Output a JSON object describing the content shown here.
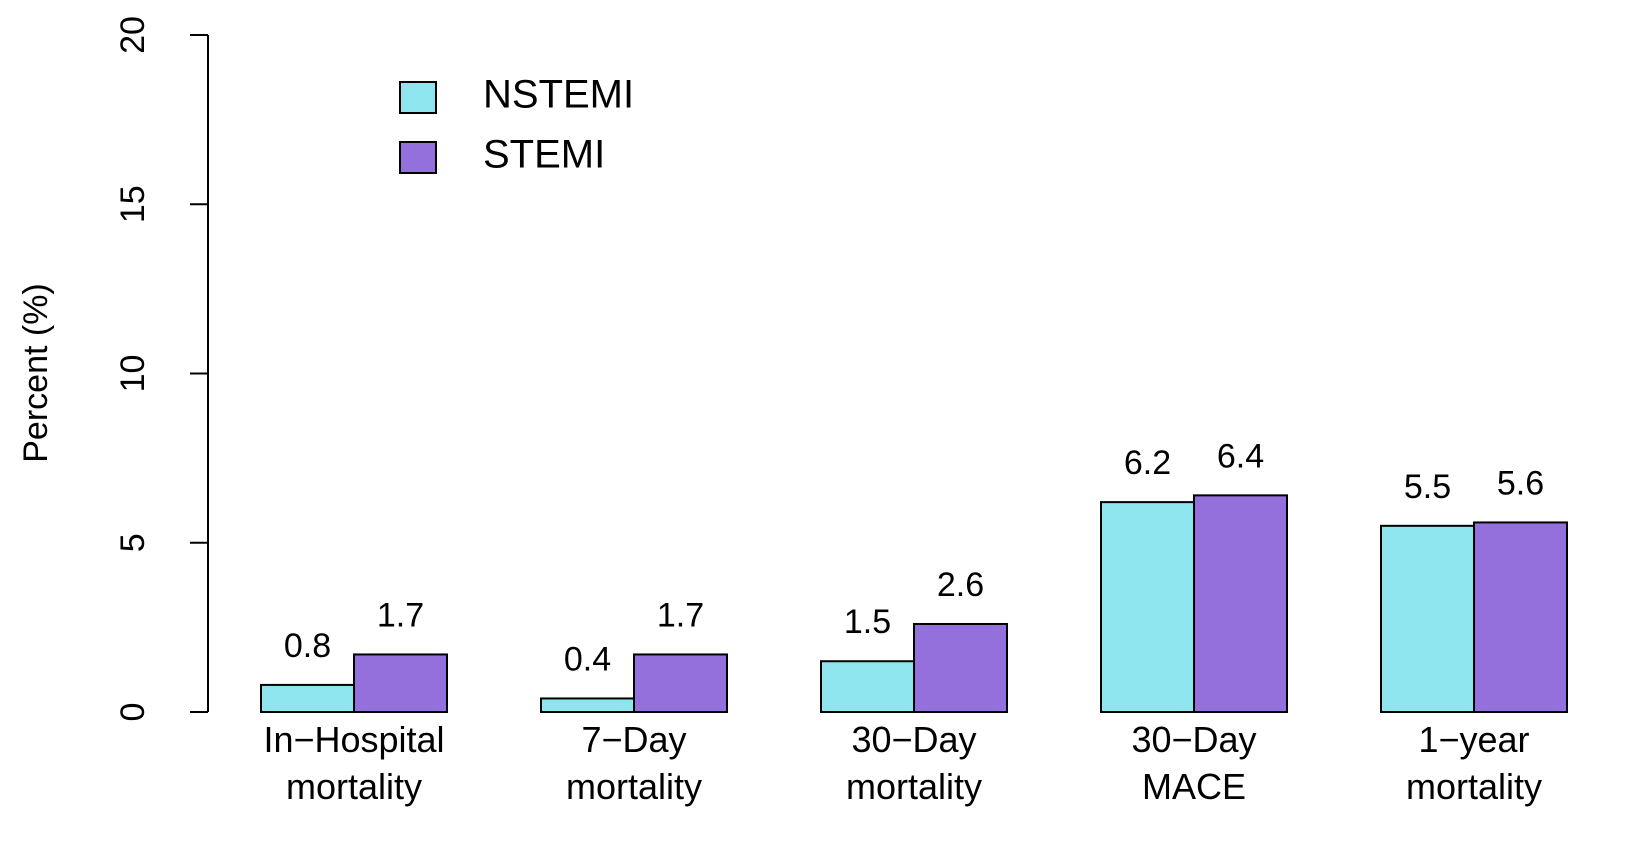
{
  "chart_data": {
    "type": "bar",
    "y_label": "Percent (%)",
    "categories": [
      "In−Hospital\nmortality",
      "7−Day\nmortality",
      "30−Day\nmortality",
      "30−Day\nMACE",
      "1−year\nmortality"
    ],
    "series": [
      {
        "name": "NSTEMI",
        "color": "#8EE5EE",
        "values": [
          0.8,
          0.4,
          1.5,
          6.2,
          5.5
        ]
      },
      {
        "name": "STEMI",
        "color": "#9370DB",
        "values": [
          1.7,
          1.7,
          2.6,
          6.4,
          5.6
        ]
      }
    ],
    "ylim": [
      0,
      20
    ],
    "yticks": [
      0,
      5,
      10,
      15,
      20
    ],
    "legend": "top-left",
    "grid": false
  }
}
